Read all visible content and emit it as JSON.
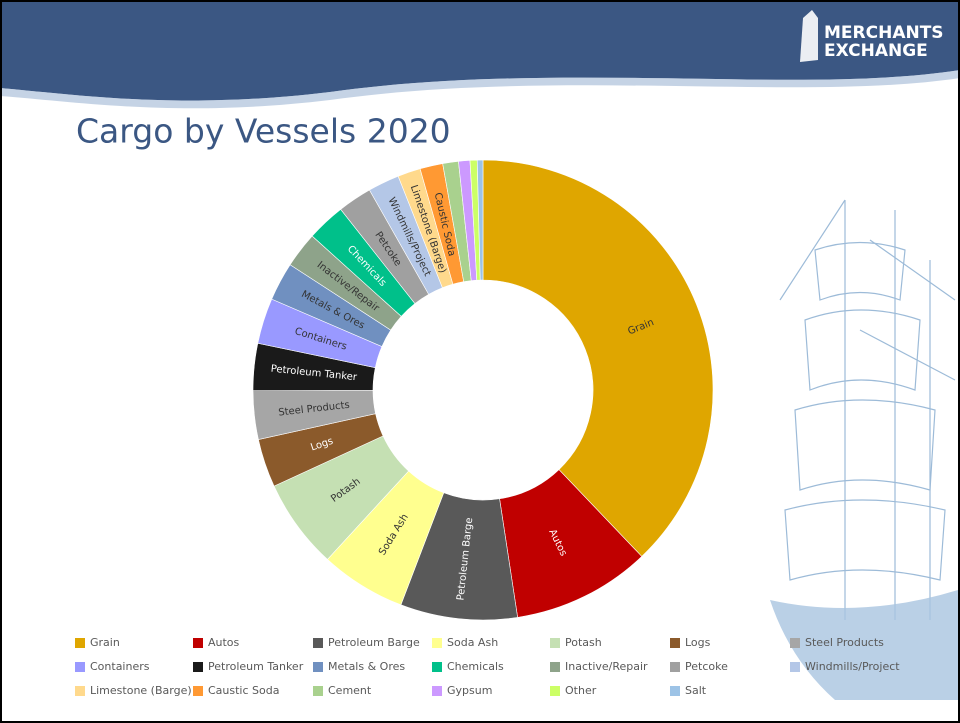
{
  "logo": [
    "MERCHANTS",
    "EXCHANGE"
  ],
  "chart_data": {
    "type": "donut",
    "title": "Cargo by Vessels 2020",
    "categories": [
      "Grain",
      "Autos",
      "Petroleum Barge",
      "Soda Ash",
      "Potash",
      "Logs",
      "Steel Products",
      "Containers",
      "Petroleum Tanker",
      "Metals & Ores",
      "Chemicals",
      "Inactive/Repair",
      "Petcoke",
      "Windmills/Project",
      "Limestone (Barge)",
      "Caustic Soda",
      "Cement",
      "Gypsum",
      "Other",
      "Salt"
    ],
    "values": [
      37.8,
      9.7,
      8.2,
      6.0,
      6.3,
      3.4,
      3.4,
      3.2,
      3.3,
      2.7,
      2.7,
      2.5,
      2.4,
      2.2,
      1.6,
      1.6,
      1.1,
      0.8,
      0.5,
      0.4
    ],
    "colors": [
      "#dfa600",
      "#c00000",
      "#595959",
      "#ffff8f",
      "#c5e0b3",
      "#8b5a2b",
      "#a6a6a6",
      "#9999ff",
      "#1a1a1a",
      "#7090c0",
      "#00c08a",
      "#8ea38a",
      "#a0a0a0",
      "#b4c7e7",
      "#ffd98c",
      "#ff9933",
      "#a9d18e",
      "#cc99ff",
      "#ccff66",
      "#9dc3e6"
    ],
    "slice_order": [
      0,
      1,
      2,
      3,
      4,
      5,
      6,
      8,
      7,
      9,
      11,
      10,
      12,
      13,
      14,
      15,
      16,
      17,
      18,
      19
    ]
  }
}
